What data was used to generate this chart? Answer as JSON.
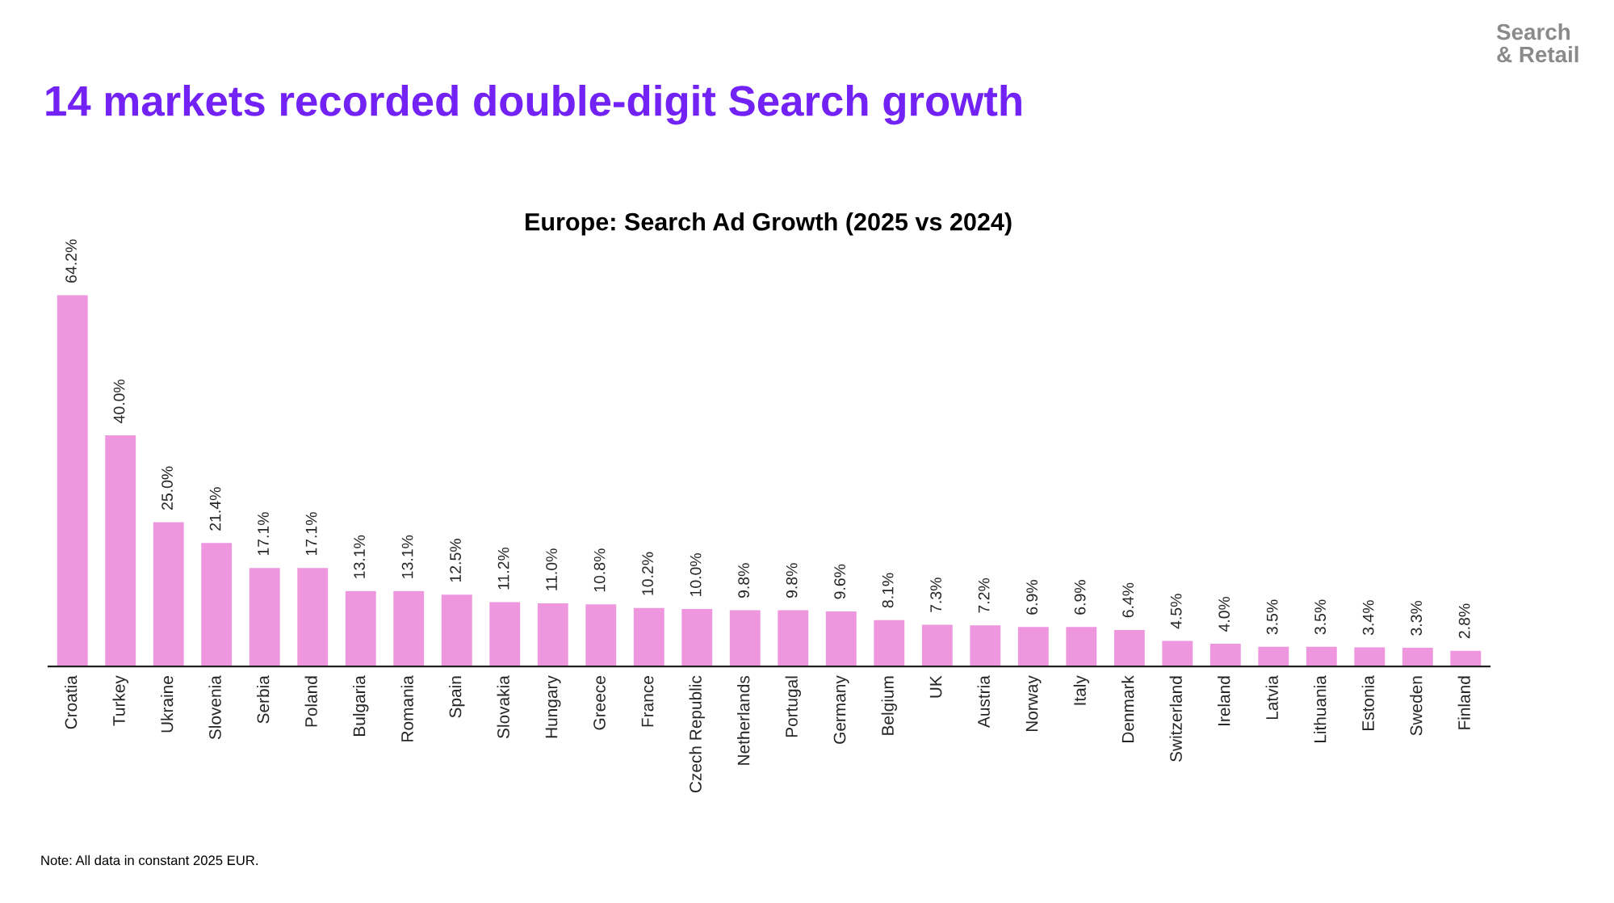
{
  "chart_data": {
    "type": "bar",
    "title": "14 markets recorded double-digit Search growth",
    "subtitle": "Europe: Search Ad Growth (2025 vs 2024)",
    "categories": [
      "Croatia",
      "Turkey",
      "Ukraine",
      "Slovenia",
      "Serbia",
      "Poland",
      "Bulgaria",
      "Romania",
      "Spain",
      "Slovakia",
      "Hungary",
      "Greece",
      "France",
      "Czech Republic",
      "Netherlands",
      "Portugal",
      "Germany",
      "Belgium",
      "UK",
      "Austria",
      "Norway",
      "Italy",
      "Denmark",
      "Switzerland",
      "Ireland",
      "Latvia",
      "Lithuania",
      "Estonia",
      "Sweden",
      "Finland"
    ],
    "values": [
      64.2,
      40.0,
      25.0,
      21.4,
      17.1,
      17.1,
      13.1,
      13.1,
      12.5,
      11.2,
      11.0,
      10.8,
      10.2,
      10.0,
      9.8,
      9.8,
      9.6,
      8.1,
      7.3,
      7.2,
      6.9,
      6.9,
      6.4,
      4.5,
      4.0,
      3.5,
      3.5,
      3.4,
      3.3,
      2.8
    ],
    "value_labels": [
      "64.2%",
      "40.0%",
      "25.0%",
      "21.4%",
      "17.1%",
      "17.1%",
      "13.1%",
      "13.1%",
      "12.5%",
      "11.2%",
      "11.0%",
      "10.8%",
      "10.2%",
      "10.0%",
      "9.8%",
      "9.8%",
      "9.6%",
      "8.1%",
      "7.3%",
      "7.2%",
      "6.9%",
      "6.9%",
      "6.4%",
      "4.5%",
      "4.0%",
      "3.5%",
      "3.5%",
      "3.4%",
      "3.3%",
      "2.8%"
    ],
    "color": "#ee96de",
    "grid": false,
    "legend": false,
    "tick_labels": "x",
    "annotations": [
      "Search\n& Retail",
      "Note: All data in constant 2025 EUR."
    ]
  }
}
